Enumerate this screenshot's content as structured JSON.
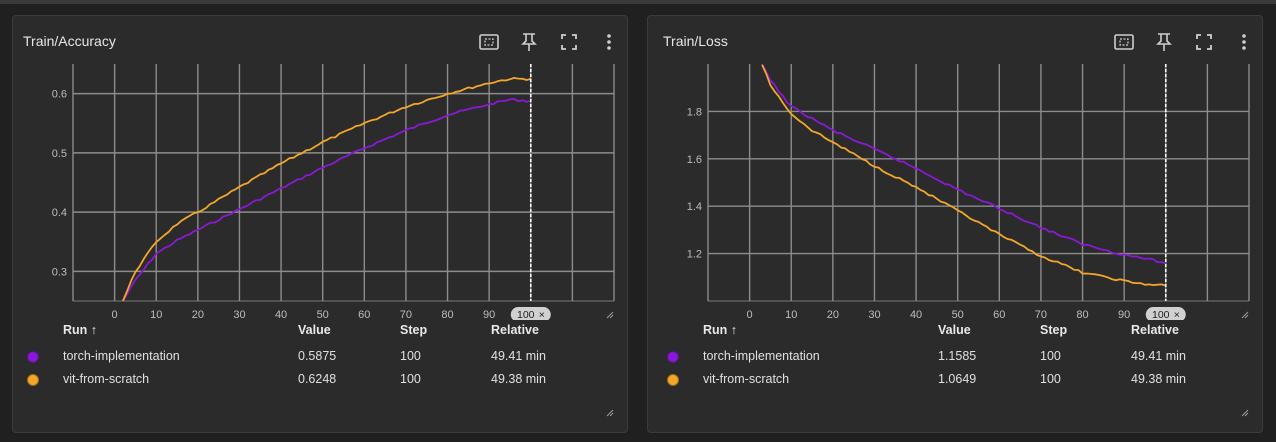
{
  "colors": {
    "torch": "#8a19d6",
    "vit": "#f2a72a",
    "grid": "#8c8c8c",
    "card": "#2b2b2b",
    "bg": "#202020"
  },
  "panels": [
    {
      "title": "Train/Accuracy",
      "hover_step_label": "100",
      "table": {
        "headers": {
          "run": "Run ↑",
          "value": "Value",
          "step": "Step",
          "relative": "Relative"
        },
        "rows": [
          {
            "run": "torch-implementation",
            "value": "0.5875",
            "step": "100",
            "relative": "49.41 min"
          },
          {
            "run": "vit-from-scratch",
            "value": "0.6248",
            "step": "100",
            "relative": "49.38 min"
          }
        ]
      }
    },
    {
      "title": "Train/Loss",
      "hover_step_label": "100",
      "table": {
        "headers": {
          "run": "Run ↑",
          "value": "Value",
          "step": "Step",
          "relative": "Relative"
        },
        "rows": [
          {
            "run": "torch-implementation",
            "value": "1.1585",
            "step": "100",
            "relative": "49.41 min"
          },
          {
            "run": "vit-from-scratch",
            "value": "1.0649",
            "step": "100",
            "relative": "49.38 min"
          }
        ]
      }
    }
  ],
  "chart_data": [
    {
      "type": "line",
      "title": "Train/Accuracy",
      "xlim": [
        -10,
        120
      ],
      "ylim": [
        0.25,
        0.65
      ],
      "x_ticks": [
        0,
        10,
        20,
        30,
        40,
        50,
        60,
        70,
        80,
        90
      ],
      "x_tick_labels": [
        "0",
        "10",
        "20",
        "30",
        "40",
        "50",
        "60",
        "70",
        "80",
        "90"
      ],
      "y_ticks": [
        0.3,
        0.4,
        0.5,
        0.6
      ],
      "y_tick_labels": [
        "0.3",
        "0.4",
        "0.5",
        "0.6"
      ],
      "hover_step": 100,
      "grid": true,
      "series": [
        {
          "name": "torch-implementation",
          "x": [
            2,
            5,
            10,
            15,
            20,
            30,
            40,
            50,
            60,
            70,
            80,
            90,
            95,
            100
          ],
          "y": [
            0.25,
            0.285,
            0.33,
            0.352,
            0.37,
            0.405,
            0.44,
            0.475,
            0.508,
            0.538,
            0.564,
            0.582,
            0.59,
            0.5875
          ]
        },
        {
          "name": "vit-from-scratch",
          "x": [
            2,
            5,
            10,
            15,
            20,
            30,
            40,
            50,
            60,
            70,
            80,
            90,
            95,
            100
          ],
          "y": [
            0.25,
            0.3,
            0.35,
            0.38,
            0.4,
            0.442,
            0.482,
            0.518,
            0.55,
            0.578,
            0.6,
            0.618,
            0.625,
            0.6248
          ]
        }
      ]
    },
    {
      "type": "line",
      "title": "Train/Loss",
      "xlim": [
        -10,
        120
      ],
      "ylim": [
        1.0,
        2.0
      ],
      "x_ticks": [
        0,
        10,
        20,
        30,
        40,
        50,
        60,
        70,
        80,
        90
      ],
      "x_tick_labels": [
        "0",
        "10",
        "20",
        "30",
        "40",
        "50",
        "60",
        "70",
        "80",
        "90"
      ],
      "y_ticks": [
        1.2,
        1.4,
        1.6,
        1.8
      ],
      "y_tick_labels": [
        "1.2",
        "1.4",
        "1.6",
        "1.8"
      ],
      "hover_step": 100,
      "grid": true,
      "series": [
        {
          "name": "torch-implementation",
          "x": [
            3,
            5,
            10,
            15,
            20,
            30,
            40,
            50,
            60,
            70,
            80,
            90,
            95,
            100
          ],
          "y": [
            2.0,
            1.93,
            1.82,
            1.77,
            1.72,
            1.64,
            1.56,
            1.47,
            1.39,
            1.31,
            1.24,
            1.195,
            1.18,
            1.1585
          ]
        },
        {
          "name": "vit-from-scratch",
          "x": [
            3,
            5,
            10,
            15,
            20,
            30,
            40,
            50,
            60,
            70,
            80,
            90,
            95,
            100
          ],
          "y": [
            2.0,
            1.91,
            1.79,
            1.72,
            1.67,
            1.57,
            1.48,
            1.38,
            1.28,
            1.19,
            1.12,
            1.085,
            1.07,
            1.0649
          ]
        }
      ]
    }
  ]
}
